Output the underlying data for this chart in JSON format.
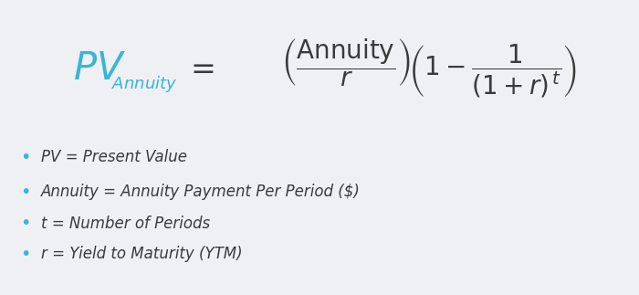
{
  "background_color": "#eef0f4",
  "formula_color": "#3a3a3a",
  "pv_color": "#3ab5d5",
  "bullet_color": "#3ab5d5",
  "bullet_items": [
    "PV = Present Value",
    "Annuity = Annuity Payment Per Period ($)",
    "t = Number of Periods",
    "r = Yield to Maturity (YTM)"
  ],
  "fig_width": 7.0,
  "fig_height": 3.23,
  "dpi": 100
}
